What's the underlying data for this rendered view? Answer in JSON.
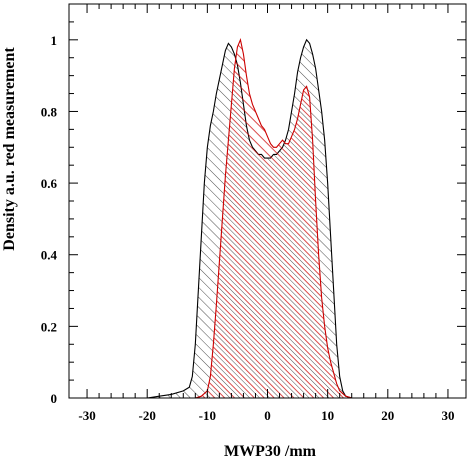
{
  "chart_data": {
    "type": "area",
    "title": "",
    "xlabel": "MWP30 /mm",
    "ylabel": "Density a.u. red measurement",
    "xlim": [
      -33,
      33
    ],
    "ylim": [
      0,
      1.1
    ],
    "x_ticks": [
      -30,
      -20,
      -10,
      0,
      10,
      20,
      30
    ],
    "y_ticks": [
      0,
      0.2,
      0.4,
      0.6,
      0.8,
      1
    ],
    "x_tick_labels": [
      "-30",
      "-20",
      "-10",
      "0",
      "10",
      "20",
      "30"
    ],
    "y_tick_labels": [
      "0",
      "0.2",
      "0.4",
      "0.6",
      "0.8",
      "1"
    ],
    "grid": false,
    "legend": "none",
    "series": [
      {
        "color": "#000000",
        "hatch": "diagonal",
        "points": [
          [
            -33,
            0
          ],
          [
            -20,
            0
          ],
          [
            -18,
            0.005
          ],
          [
            -16,
            0.01
          ],
          [
            -14,
            0.02
          ],
          [
            -13,
            0.03
          ],
          [
            -12.5,
            0.06
          ],
          [
            -12,
            0.15
          ],
          [
            -11.5,
            0.3
          ],
          [
            -11,
            0.45
          ],
          [
            -10.5,
            0.6
          ],
          [
            -10,
            0.7
          ],
          [
            -9.5,
            0.76
          ],
          [
            -9,
            0.8
          ],
          [
            -8.5,
            0.85
          ],
          [
            -8,
            0.89
          ],
          [
            -7.5,
            0.93
          ],
          [
            -7,
            0.97
          ],
          [
            -6.5,
            0.99
          ],
          [
            -6,
            0.98
          ],
          [
            -5.5,
            0.96
          ],
          [
            -5,
            0.93
          ],
          [
            -4.5,
            0.88
          ],
          [
            -4,
            0.82
          ],
          [
            -3.5,
            0.76
          ],
          [
            -3,
            0.72
          ],
          [
            -2.5,
            0.7
          ],
          [
            -2,
            0.69
          ],
          [
            -1.5,
            0.68
          ],
          [
            -1,
            0.68
          ],
          [
            -0.5,
            0.67
          ],
          [
            0,
            0.67
          ],
          [
            0.5,
            0.67
          ],
          [
            1,
            0.68
          ],
          [
            1.5,
            0.68
          ],
          [
            2,
            0.69
          ],
          [
            2.5,
            0.7
          ],
          [
            3,
            0.72
          ],
          [
            3.5,
            0.75
          ],
          [
            4,
            0.8
          ],
          [
            4.5,
            0.85
          ],
          [
            5,
            0.91
          ],
          [
            5.5,
            0.95
          ],
          [
            6,
            0.98
          ],
          [
            6.5,
            1.0
          ],
          [
            7,
            0.99
          ],
          [
            7.5,
            0.96
          ],
          [
            8,
            0.92
          ],
          [
            8.5,
            0.86
          ],
          [
            9,
            0.8
          ],
          [
            9.5,
            0.72
          ],
          [
            10,
            0.6
          ],
          [
            10.5,
            0.45
          ],
          [
            11,
            0.3
          ],
          [
            11.5,
            0.15
          ],
          [
            12,
            0.06
          ],
          [
            12.5,
            0.02
          ],
          [
            13,
            0.005
          ],
          [
            14,
            0
          ],
          [
            33,
            0
          ]
        ]
      },
      {
        "color": "#cc0000",
        "hatch": "diagonal",
        "points": [
          [
            -33,
            0
          ],
          [
            -12,
            0
          ],
          [
            -11,
            0.005
          ],
          [
            -10,
            0.02
          ],
          [
            -9.5,
            0.06
          ],
          [
            -9,
            0.15
          ],
          [
            -8.5,
            0.26
          ],
          [
            -8,
            0.38
          ],
          [
            -7.5,
            0.5
          ],
          [
            -7,
            0.62
          ],
          [
            -6.5,
            0.72
          ],
          [
            -6,
            0.82
          ],
          [
            -5.5,
            0.92
          ],
          [
            -5,
            0.98
          ],
          [
            -4.5,
            1.0
          ],
          [
            -4,
            0.96
          ],
          [
            -3.5,
            0.9
          ],
          [
            -3,
            0.85
          ],
          [
            -2.5,
            0.82
          ],
          [
            -2,
            0.8
          ],
          [
            -1.5,
            0.78
          ],
          [
            -1,
            0.76
          ],
          [
            -0.5,
            0.75
          ],
          [
            0,
            0.73
          ],
          [
            0.5,
            0.71
          ],
          [
            1,
            0.7
          ],
          [
            1.5,
            0.7
          ],
          [
            2,
            0.71
          ],
          [
            2.5,
            0.72
          ],
          [
            3,
            0.71
          ],
          [
            3.5,
            0.71
          ],
          [
            4,
            0.73
          ],
          [
            4.5,
            0.75
          ],
          [
            5,
            0.78
          ],
          [
            5.5,
            0.82
          ],
          [
            6,
            0.86
          ],
          [
            6.5,
            0.87
          ],
          [
            7,
            0.84
          ],
          [
            7.5,
            0.72
          ],
          [
            8,
            0.55
          ],
          [
            8.5,
            0.4
          ],
          [
            9,
            0.28
          ],
          [
            9.5,
            0.2
          ],
          [
            10,
            0.14
          ],
          [
            10.5,
            0.1
          ],
          [
            11,
            0.07
          ],
          [
            11.5,
            0.04
          ],
          [
            12,
            0.02
          ],
          [
            13,
            0.005
          ],
          [
            14,
            0
          ],
          [
            33,
            0
          ]
        ]
      }
    ]
  }
}
